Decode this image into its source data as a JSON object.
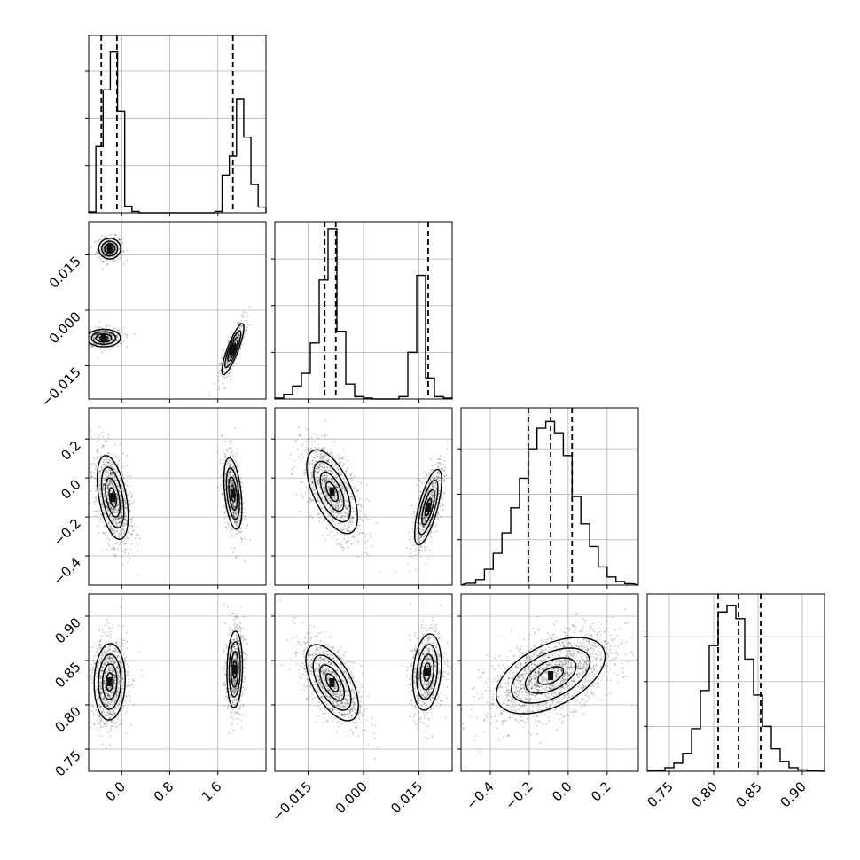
{
  "chart_data": {
    "type": "corner",
    "parameters": [
      {
        "id": "p1",
        "range": [
          -0.55,
          2.4
        ],
        "ticks": [
          0.0,
          0.8,
          1.6
        ],
        "tick_labels": [
          "0.0",
          "0.8",
          "1.6"
        ],
        "hist": {
          "bin_edges": [
            -0.55,
            -0.43,
            -0.31,
            -0.19,
            -0.07,
            0.05,
            0.17,
            0.29,
            0.41,
            1.55,
            1.67,
            1.79,
            1.91,
            2.03,
            2.15,
            2.27,
            2.4
          ],
          "counts": [
            2,
            140,
            260,
            340,
            215,
            14,
            3,
            0,
            0,
            3,
            80,
            120,
            240,
            160,
            60,
            12
          ],
          "ymax": 375
        },
        "quantiles": [
          -0.34,
          -0.08,
          1.85
        ]
      },
      {
        "id": "p2",
        "range": [
          -0.024,
          0.024
        ],
        "ticks": [
          -0.015,
          0.0,
          0.015
        ],
        "tick_labels": [
          "−0.015",
          "0.000",
          "0.015"
        ],
        "hist": {
          "bin_edges": [
            -0.024,
            -0.0216,
            -0.0192,
            -0.0168,
            -0.0144,
            -0.012,
            -0.0096,
            -0.0072,
            -0.0048,
            -0.0024,
            0.0,
            0.0024,
            0.0048,
            0.0072,
            0.0096,
            0.012,
            0.0144,
            0.0168,
            0.0192,
            0.0216,
            0.024
          ],
          "counts": [
            2,
            10,
            28,
            55,
            120,
            255,
            365,
            145,
            32,
            5,
            2,
            0,
            0,
            0,
            5,
            100,
            265,
            45,
            5,
            2
          ],
          "ymax": 380
        },
        "quantiles": [
          -0.0105,
          -0.0075,
          0.0175
        ]
      },
      {
        "id": "p3",
        "range": [
          -0.55,
          0.36
        ],
        "ticks": [
          -0.4,
          -0.2,
          0.0,
          0.2
        ],
        "tick_labels": [
          "−0.4",
          "−0.2",
          "0.0",
          "0.2"
        ],
        "hist": {
          "bin_edges": [
            -0.52,
            -0.475,
            -0.43,
            -0.385,
            -0.34,
            -0.295,
            -0.25,
            -0.205,
            -0.16,
            -0.115,
            -0.07,
            -0.025,
            0.02,
            0.065,
            0.11,
            0.155,
            0.2,
            0.245,
            0.29,
            0.335
          ],
          "counts": [
            4,
            12,
            35,
            70,
            115,
            170,
            235,
            300,
            345,
            360,
            335,
            285,
            195,
            135,
            85,
            40,
            18,
            8,
            3
          ],
          "ymax": 390
        },
        "quantiles": [
          -0.205,
          -0.09,
          0.02
        ]
      },
      {
        "id": "p4",
        "range": [
          0.725,
          0.925
        ],
        "ticks": [
          0.75,
          0.8,
          0.85,
          0.9
        ],
        "tick_labels": [
          "0.75",
          "0.80",
          "0.85",
          "0.90"
        ],
        "hist": {
          "bin_edges": [
            0.735,
            0.745,
            0.755,
            0.765,
            0.775,
            0.785,
            0.795,
            0.805,
            0.815,
            0.825,
            0.835,
            0.845,
            0.855,
            0.865,
            0.875,
            0.885,
            0.895,
            0.905,
            0.915
          ],
          "counts": [
            2,
            8,
            18,
            40,
            95,
            180,
            280,
            355,
            370,
            340,
            250,
            170,
            100,
            50,
            22,
            8,
            3,
            1
          ],
          "ymax": 395
        },
        "quantiles": [
          0.805,
          0.828,
          0.853
        ]
      }
    ],
    "pairs": [
      {
        "x": "p1",
        "y": "p2",
        "clusters": [
          {
            "mean": [
              -0.2,
              0.0167
            ],
            "sd": [
              0.085,
              0.0013
            ],
            "rho": 0.0,
            "n": 320
          },
          {
            "mean": [
              -0.3,
              -0.0075
            ],
            "sd": [
              0.13,
              0.0011
            ],
            "rho": 0.0,
            "n": 420
          },
          {
            "mean": [
              1.85,
              -0.0105
            ],
            "sd": [
              0.085,
              0.0032
            ],
            "rho": 0.85,
            "n": 400
          }
        ]
      },
      {
        "x": "p1",
        "y": "p3",
        "clusters": [
          {
            "mean": [
              -0.15,
              -0.1
            ],
            "sd": [
              0.12,
              0.1
            ],
            "rho": -0.45,
            "n": 1000
          },
          {
            "mean": [
              1.85,
              -0.08
            ],
            "sd": [
              0.07,
              0.085
            ],
            "rho": -0.4,
            "n": 700
          }
        ]
      },
      {
        "x": "p2",
        "y": "p3",
        "clusters": [
          {
            "mean": [
              -0.0085,
              -0.07
            ],
            "sd": [
              0.0032,
              0.1
            ],
            "rho": -0.6,
            "n": 1000
          },
          {
            "mean": [
              0.0175,
              -0.15
            ],
            "sd": [
              0.0017,
              0.09
            ],
            "rho": 0.7,
            "n": 700
          }
        ]
      },
      {
        "x": "p1",
        "y": "p4",
        "clusters": [
          {
            "mean": [
              -0.2,
              0.826
            ],
            "sd": [
              0.12,
              0.02
            ],
            "rho": 0.05,
            "n": 1000
          },
          {
            "mean": [
              1.88,
              0.84
            ],
            "sd": [
              0.06,
              0.02
            ],
            "rho": 0.1,
            "n": 700
          }
        ]
      },
      {
        "x": "p2",
        "y": "p4",
        "clusters": [
          {
            "mean": [
              -0.0085,
              0.825
            ],
            "sd": [
              0.0033,
              0.02
            ],
            "rho": -0.6,
            "n": 1000
          },
          {
            "mean": [
              0.0172,
              0.837
            ],
            "sd": [
              0.0018,
              0.02
            ],
            "rho": 0.2,
            "n": 700
          }
        ]
      },
      {
        "x": "p3",
        "y": "p4",
        "clusters": [
          {
            "mean": [
              -0.09,
              0.833
            ],
            "sd": [
              0.13,
              0.02
            ],
            "rho": 0.5,
            "n": 1600
          }
        ]
      }
    ],
    "grid": true
  }
}
